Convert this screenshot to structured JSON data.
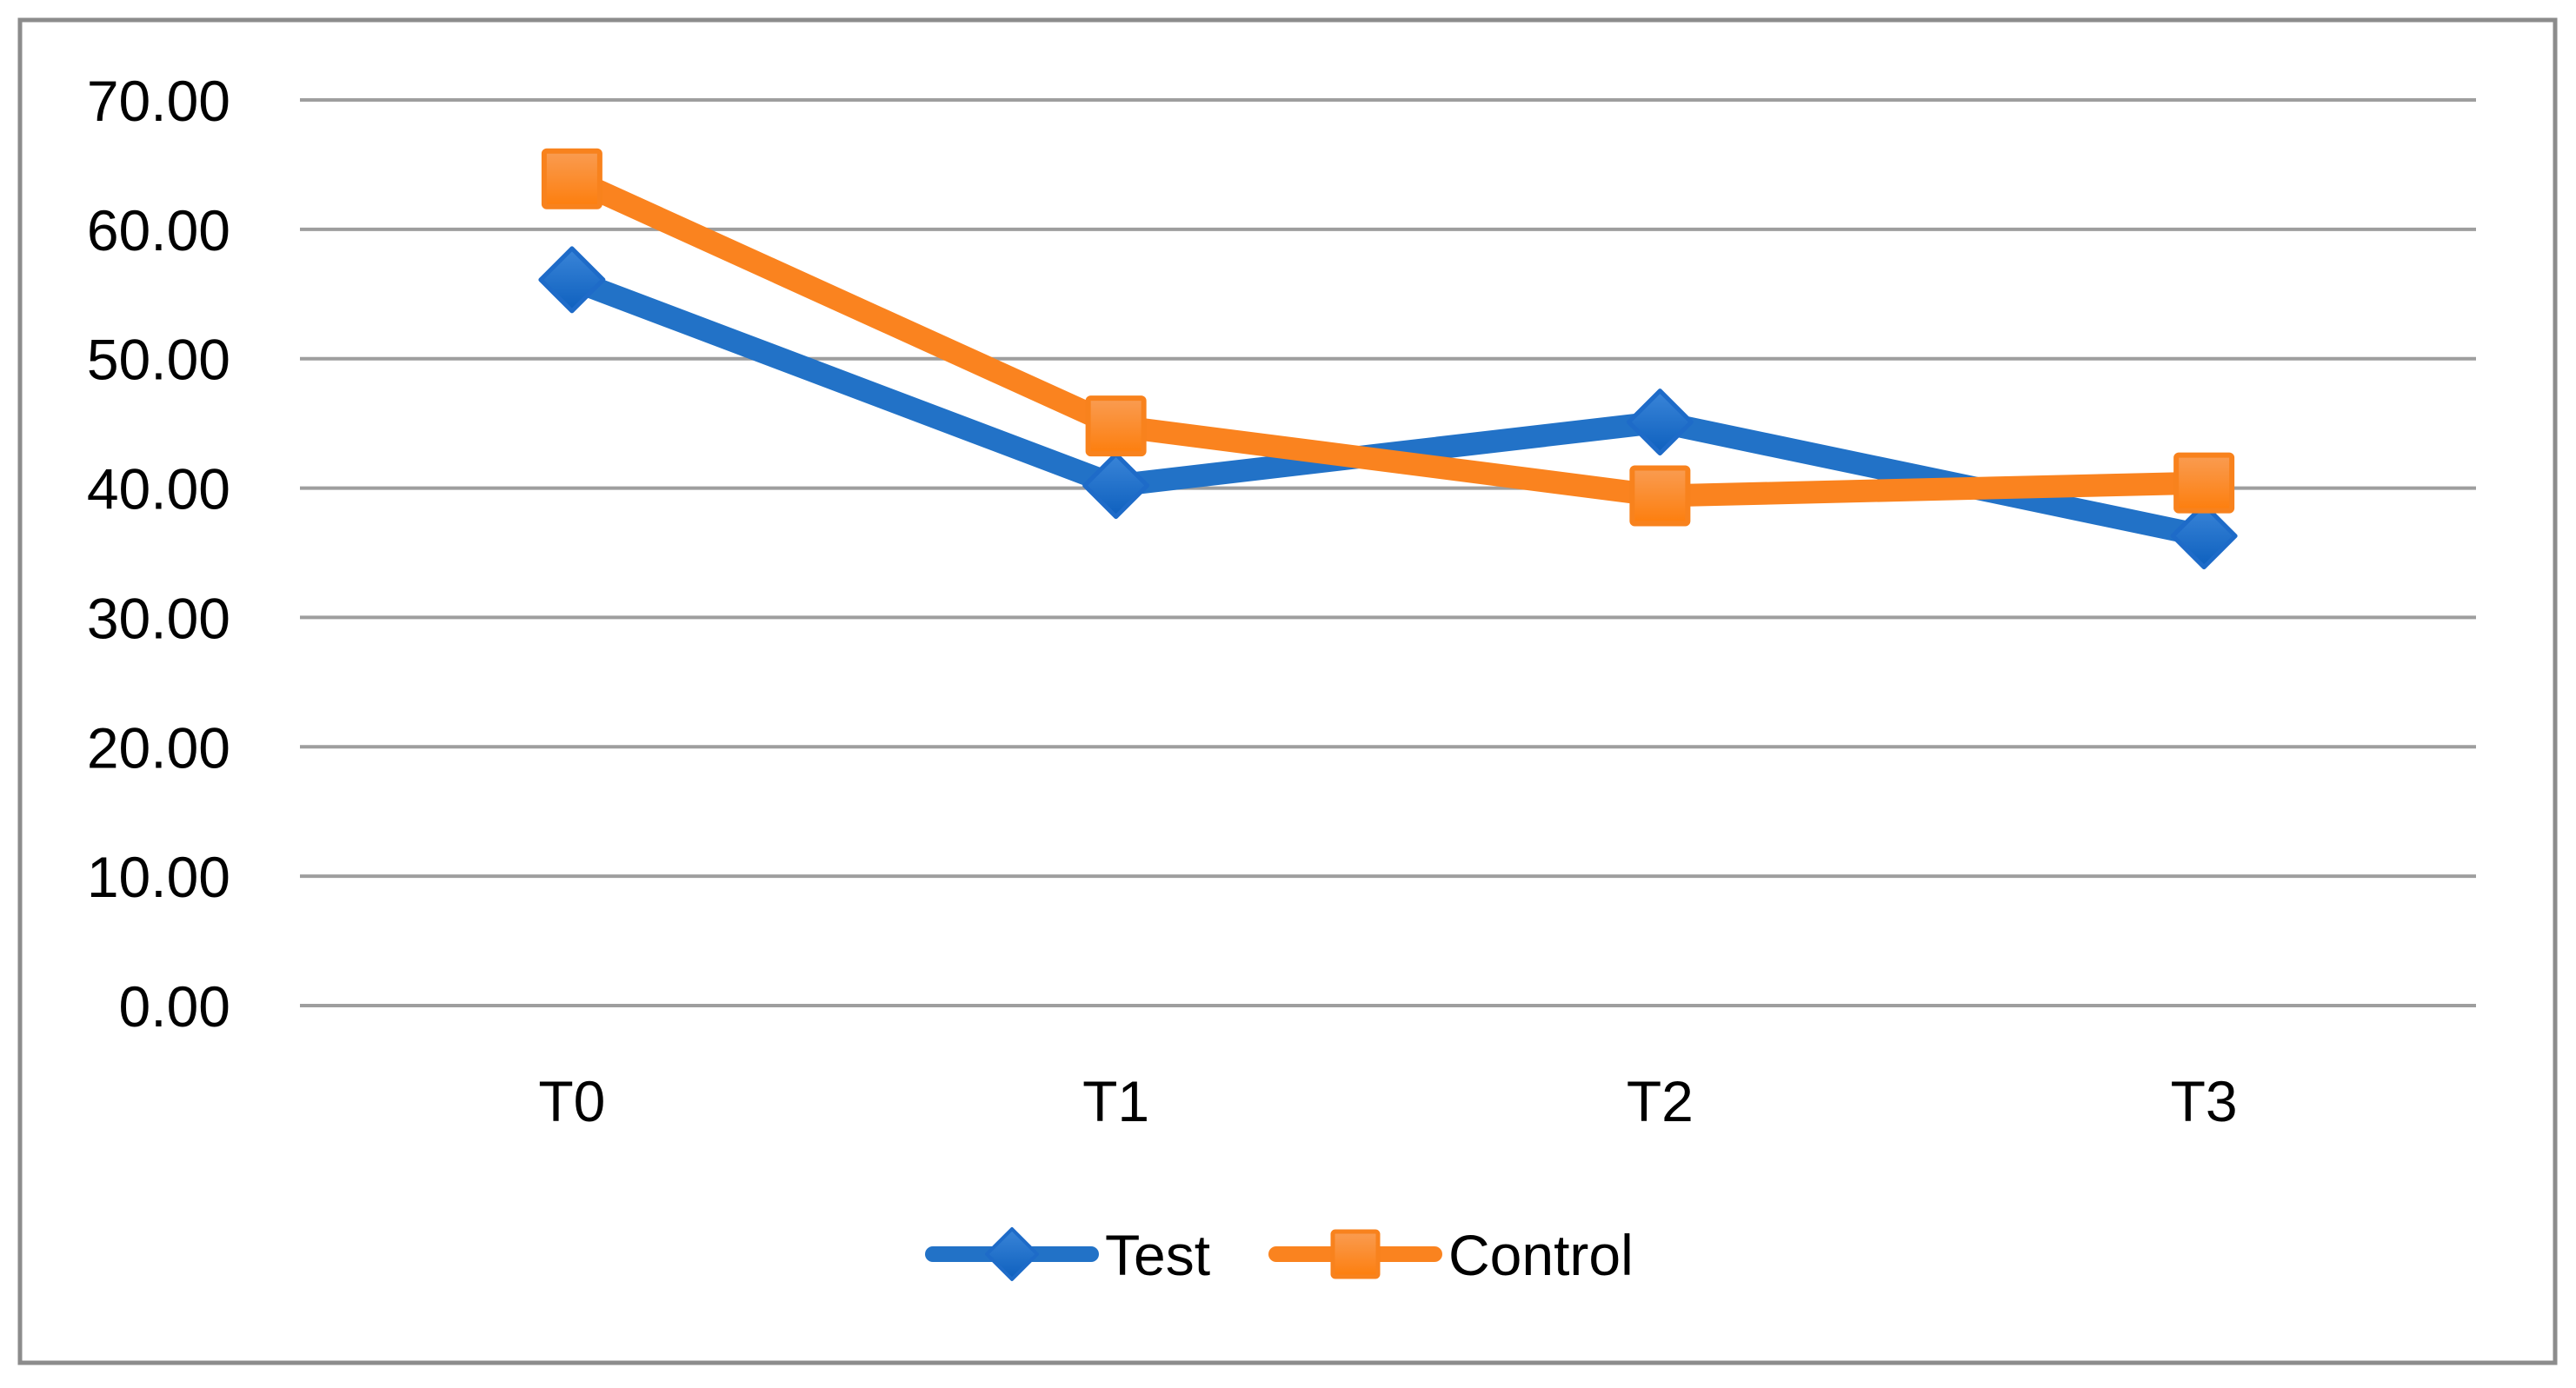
{
  "chart_data": {
    "type": "line",
    "title": "",
    "xlabel": "",
    "ylabel": "",
    "categories": [
      "T0",
      "T1",
      "T2",
      "T3"
    ],
    "series": [
      {
        "name": "Test",
        "marker": "diamond",
        "values": [
          56.1,
          40.2,
          45.1,
          36.3
        ],
        "line_color": "#2272C7",
        "marker_fill_light": "#3A85D8",
        "marker_fill_dark": "#0E60BE",
        "marker_edge": "#1E6BC8"
      },
      {
        "name": "Control",
        "marker": "square",
        "values": [
          63.9,
          44.8,
          39.4,
          40.4
        ],
        "line_color": "#FA831F",
        "marker_fill_light": "#F99C52",
        "marker_fill_dark": "#FD7E0D",
        "marker_edge": "#F8821D"
      }
    ],
    "ylim": [
      0,
      70
    ],
    "ytick_step": 10,
    "ytick_labels": [
      "0.00",
      "10.00",
      "20.00",
      "30.00",
      "40.00",
      "50.00",
      "60.00",
      "70.00"
    ],
    "xtick_labels": [
      "T0",
      "T1",
      "T2",
      "T3"
    ],
    "grid": "horizontal-only",
    "gridline_color": "#9E9E9E",
    "axis_text_color": "#000000",
    "legend_position": "bottom-center",
    "legend_labels": [
      "Test",
      "Control"
    ],
    "chart_border_color": "#8C8C8C",
    "plot_background": "#FFFFFF"
  }
}
